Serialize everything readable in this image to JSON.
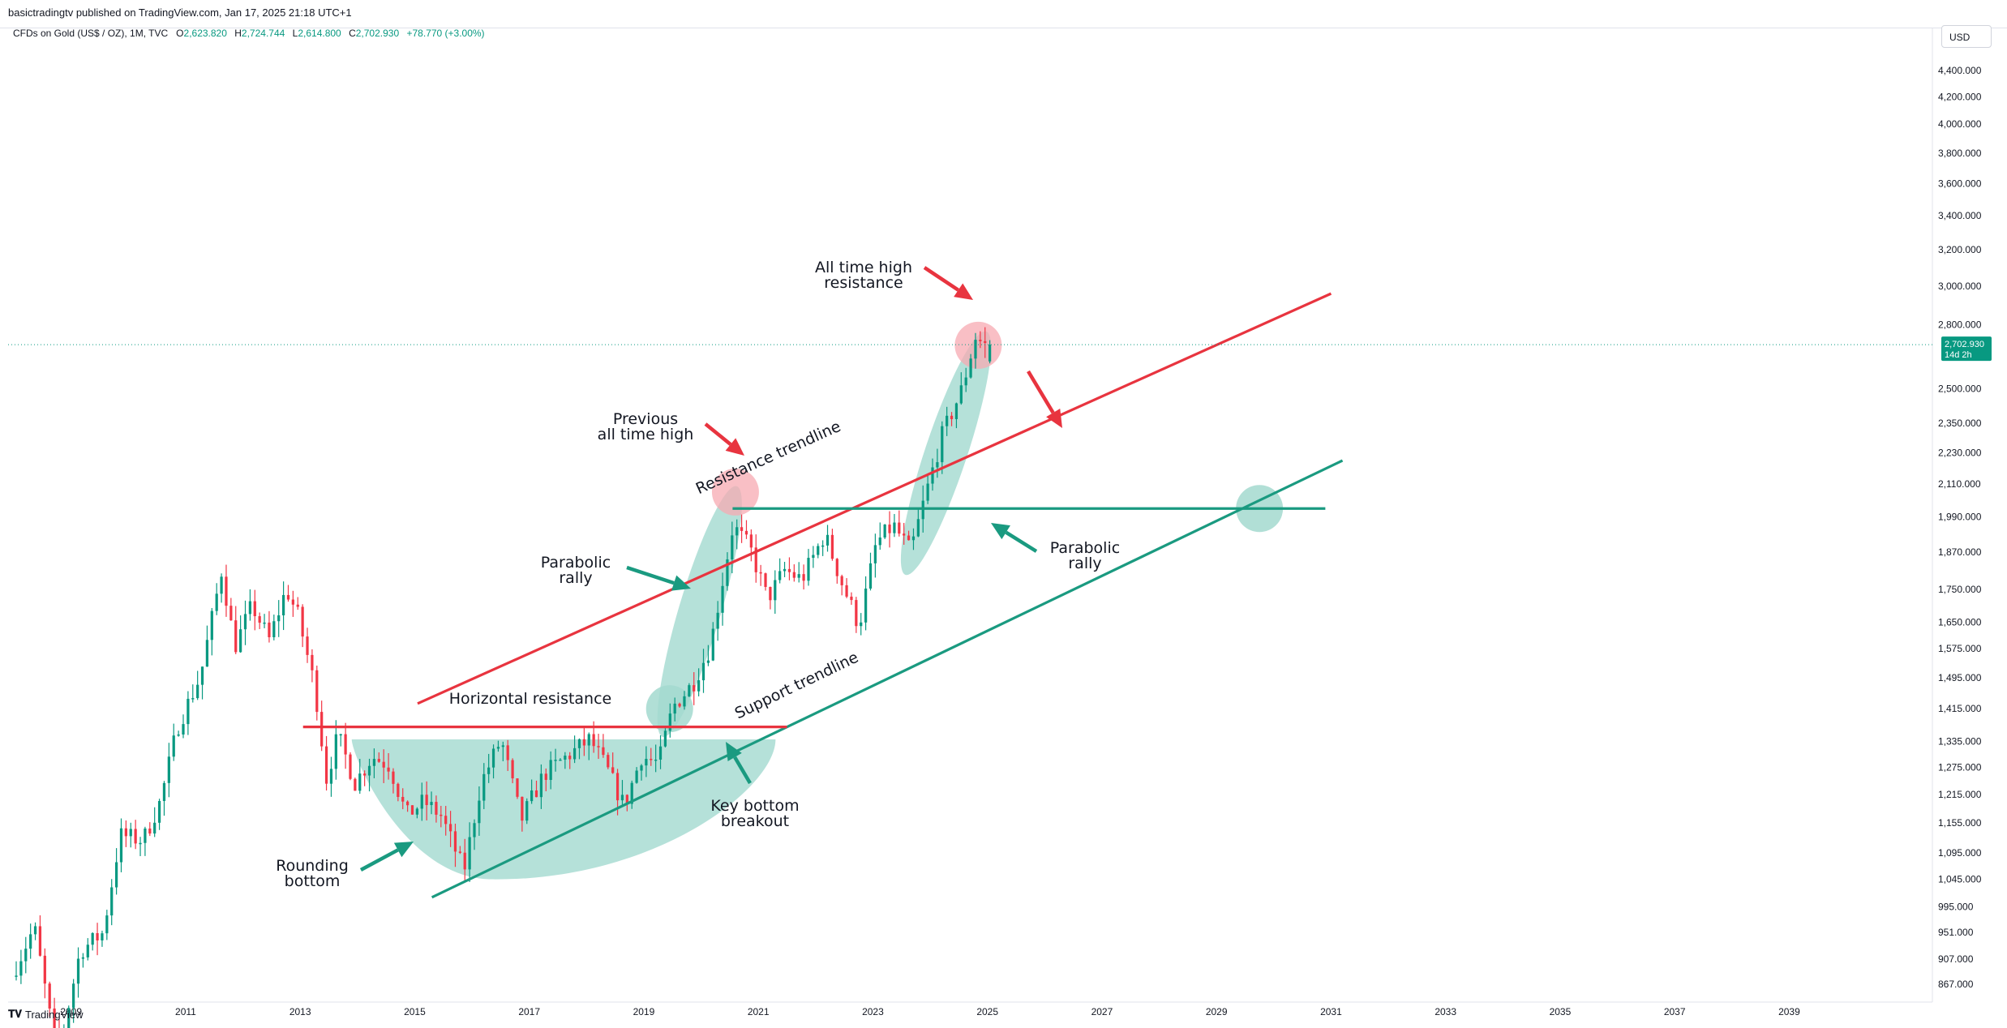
{
  "header": {
    "published_by": "basictradingtv published on TradingView.com, Jan 17, 2025 21:18 UTC+1",
    "symbol": "CFDs on Gold (US$ / OZ), 1M, TVC",
    "open_label": "O",
    "open": "2,623.820",
    "high_label": "H",
    "high": "2,724.744",
    "low_label": "L",
    "low": "2,614.800",
    "close_label": "C",
    "close": "2,702.930",
    "change": "+78.770 (+3.00%)"
  },
  "currency": "USD",
  "price_tag": {
    "value": "2,702.930",
    "countdown": "14d 2h"
  },
  "footer": {
    "brand": "TradingView"
  },
  "colors": {
    "up": "#089981",
    "down": "#f23645",
    "annotation_green": "#1a9a80",
    "annotation_red": "#e8343f",
    "fill_green": "#a3d9cf"
  },
  "chart_data": {
    "type": "candlestick",
    "y_scale": "log",
    "ylim": [
      840,
      4750
    ],
    "xlim": [
      2007.9,
      2041.5
    ],
    "y_ticks": [
      "867.000",
      "907.000",
      "951.000",
      "995.000",
      "1,045.000",
      "1,095.000",
      "1,155.000",
      "1,215.000",
      "1,275.000",
      "1,335.000",
      "1,415.000",
      "1,495.000",
      "1,575.000",
      "1,650.000",
      "1,750.000",
      "1,870.000",
      "1,990.000",
      "2,110.000",
      "2,230.000",
      "2,350.000",
      "2,500.000",
      "2,800.000",
      "3,000.000",
      "3,200.000",
      "3,400.000",
      "3,600.000",
      "3,800.000",
      "4,000.000",
      "4,200.000",
      "4,400.000"
    ],
    "x_ticks": [
      "2009",
      "2011",
      "2013",
      "2015",
      "2017",
      "2019",
      "2021",
      "2023",
      "2025",
      "2027",
      "2029",
      "2031",
      "2033",
      "2035",
      "2037",
      "2039"
    ],
    "anchors": [
      {
        "t": 2008.0,
        "v": 880
      },
      {
        "t": 2008.4,
        "v": 960
      },
      {
        "t": 2008.8,
        "v": 760
      },
      {
        "t": 2009.2,
        "v": 920
      },
      {
        "t": 2009.6,
        "v": 950
      },
      {
        "t": 2009.9,
        "v": 1130
      },
      {
        "t": 2010.3,
        "v": 1120
      },
      {
        "t": 2010.6,
        "v": 1200
      },
      {
        "t": 2010.9,
        "v": 1370
      },
      {
        "t": 2011.3,
        "v": 1500
      },
      {
        "t": 2011.67,
        "v": 1810
      },
      {
        "t": 2011.9,
        "v": 1580
      },
      {
        "t": 2012.2,
        "v": 1700
      },
      {
        "t": 2012.5,
        "v": 1600
      },
      {
        "t": 2012.8,
        "v": 1750
      },
      {
        "t": 2013.0,
        "v": 1670
      },
      {
        "t": 2013.3,
        "v": 1470
      },
      {
        "t": 2013.5,
        "v": 1250
      },
      {
        "t": 2013.7,
        "v": 1350
      },
      {
        "t": 2014.0,
        "v": 1240
      },
      {
        "t": 2014.3,
        "v": 1300
      },
      {
        "t": 2014.6,
        "v": 1280
      },
      {
        "t": 2014.9,
        "v": 1170
      },
      {
        "t": 2015.2,
        "v": 1200
      },
      {
        "t": 2015.5,
        "v": 1170
      },
      {
        "t": 2015.9,
        "v": 1060
      },
      {
        "t": 2016.2,
        "v": 1240
      },
      {
        "t": 2016.55,
        "v": 1340
      },
      {
        "t": 2016.9,
        "v": 1160
      },
      {
        "t": 2017.3,
        "v": 1260
      },
      {
        "t": 2017.7,
        "v": 1300
      },
      {
        "t": 2018.1,
        "v": 1340
      },
      {
        "t": 2018.4,
        "v": 1270
      },
      {
        "t": 2018.7,
        "v": 1190
      },
      {
        "t": 2019.0,
        "v": 1300
      },
      {
        "t": 2019.3,
        "v": 1285
      },
      {
        "t": 2019.55,
        "v": 1420
      },
      {
        "t": 2019.9,
        "v": 1480
      },
      {
        "t": 2020.2,
        "v": 1580
      },
      {
        "t": 2020.6,
        "v": 1960
      },
      {
        "t": 2020.9,
        "v": 1880
      },
      {
        "t": 2021.2,
        "v": 1720
      },
      {
        "t": 2021.5,
        "v": 1810
      },
      {
        "t": 2021.8,
        "v": 1780
      },
      {
        "t": 2022.2,
        "v": 1930
      },
      {
        "t": 2022.5,
        "v": 1770
      },
      {
        "t": 2022.8,
        "v": 1640
      },
      {
        "t": 2023.1,
        "v": 1900
      },
      {
        "t": 2023.4,
        "v": 1960
      },
      {
        "t": 2023.7,
        "v": 1870
      },
      {
        "t": 2023.95,
        "v": 2060
      },
      {
        "t": 2024.25,
        "v": 2300
      },
      {
        "t": 2024.6,
        "v": 2500
      },
      {
        "t": 2024.83,
        "v": 2740
      },
      {
        "t": 2025.0,
        "v": 2700
      }
    ],
    "last_candle": {
      "open": 2623.82,
      "high": 2724.744,
      "low": 2614.8,
      "close": 2702.93
    },
    "drawings": {
      "resistance_trendline": {
        "from": [
          2015.05,
          1428
        ],
        "to": [
          2031.0,
          2960
        ]
      },
      "support_trendline": {
        "from": [
          2015.3,
          1012
        ],
        "to": [
          2031.2,
          2200
        ]
      },
      "horizontal_resistance": {
        "from": [
          2013.05,
          1370
        ],
        "to": [
          2021.5,
          1370
        ]
      },
      "horizontal_support": {
        "from": [
          2020.55,
          2020
        ],
        "to": [
          2030.9,
          2020
        ]
      },
      "rounding_bottom": {
        "center": [
          2017.7,
          1295
        ],
        "rx_years": 3.6,
        "height": "curve"
      },
      "parabolic_ellipses": [
        {
          "t1": 2019.4,
          "v1": 1380,
          "t2": 2020.55,
          "v2": 2050
        },
        {
          "t1": 2023.65,
          "v1": 1840,
          "t2": 2024.9,
          "v2": 2700
        }
      ],
      "circles_red": [
        {
          "t": 2020.6,
          "v": 2080
        },
        {
          "t": 2024.84,
          "v": 2700
        }
      ],
      "circles_green": [
        {
          "t": 2019.45,
          "v": 1415
        },
        {
          "t": 2029.75,
          "v": 2020
        }
      ]
    },
    "annotations": [
      {
        "id": "all-time-high",
        "line1": "All time high",
        "line2": "resistance"
      },
      {
        "id": "previous-ath",
        "line1": "Previous",
        "line2": "all time high"
      },
      {
        "id": "parabolic-1",
        "line1": "Parabolic",
        "line2": "rally"
      },
      {
        "id": "parabolic-2",
        "line1": "Parabolic",
        "line2": "rally"
      },
      {
        "id": "rounding-bottom",
        "line1": "Rounding",
        "line2": "bottom"
      },
      {
        "id": "key-bottom",
        "line1": "Key bottom",
        "line2": "breakout"
      },
      {
        "id": "horizontal-resistance",
        "line1": "Horizontal resistance"
      },
      {
        "id": "resistance-trendline",
        "line1": "Resistance trendline"
      },
      {
        "id": "support-trendline",
        "line1": "Support trendline"
      }
    ]
  }
}
